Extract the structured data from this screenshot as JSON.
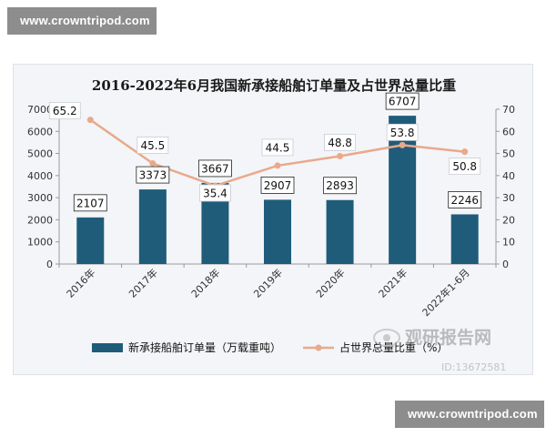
{
  "banners": {
    "top": "www.crowntripod.com",
    "bottom": "www.crowntripod.com"
  },
  "watermark": {
    "brand": "观研报告网",
    "line2": "ID:13672581",
    "icon": "eye-logo-icon"
  },
  "chart_data": {
    "type": "bar",
    "title": "2016-2022年6月我国新承接船舶订单量及占世界总量比重",
    "categories": [
      "2016年",
      "2017年",
      "2018年",
      "2019年",
      "2020年",
      "2021年",
      "2022年1-6月"
    ],
    "series": [
      {
        "name": "新承接船舶订单量（万载重吨）",
        "type": "bar",
        "axis": "left",
        "values": [
          2107,
          3373,
          3667,
          2907,
          2893,
          6707,
          2246
        ],
        "color": "#1f5c7a"
      },
      {
        "name": "占世界总量比重（%）",
        "type": "line",
        "axis": "right",
        "values": [
          65.2,
          45.5,
          35.4,
          44.5,
          48.8,
          53.8,
          50.8
        ],
        "color": "#e9a98a"
      }
    ],
    "y_left": {
      "min": 0,
      "max": 7000,
      "ticks": [
        0,
        1000,
        2000,
        3000,
        4000,
        5000,
        6000,
        7000
      ]
    },
    "y_right": {
      "min": 0,
      "max": 70,
      "ticks": [
        0,
        10,
        20,
        30,
        40,
        50,
        60,
        70
      ]
    },
    "legend_position": "bottom",
    "grid": false
  }
}
